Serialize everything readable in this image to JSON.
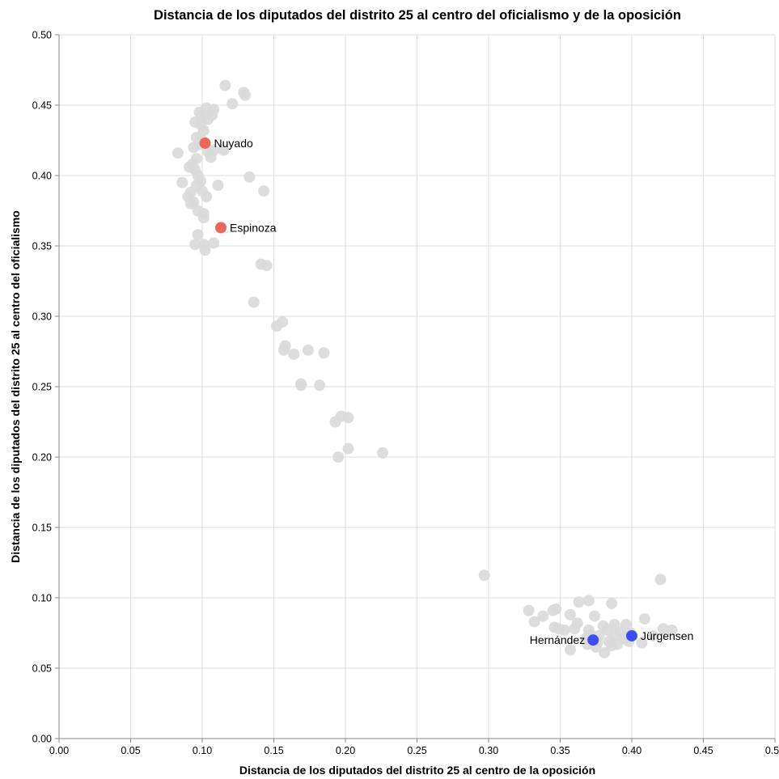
{
  "chart_data": {
    "type": "scatter",
    "title": "Distancia de los diputados del distrito 25 al centro del oficialismo y de la oposición",
    "xlabel": "Distancia de los diputados del distrito 25 al centro de la oposición",
    "ylabel": "Distancia de los diputados del distrito 25 al centro del oficialismo",
    "xlim": [
      0,
      0.5
    ],
    "ylim": [
      0,
      0.5
    ],
    "x_ticks": [
      "0.00",
      "0.05",
      "0.10",
      "0.15",
      "0.20",
      "0.25",
      "0.30",
      "0.35",
      "0.40",
      "0.45",
      "0.50"
    ],
    "y_ticks": [
      "0.00",
      "0.05",
      "0.10",
      "0.15",
      "0.20",
      "0.25",
      "0.30",
      "0.35",
      "0.40",
      "0.45",
      "0.50"
    ],
    "grid": true,
    "colors": {
      "background_points": "#d9d9d9",
      "oficialismo": "#e8685a",
      "oposicion": "#3d4ff0"
    },
    "background_points": [
      [
        0.116,
        0.464
      ],
      [
        0.129,
        0.459
      ],
      [
        0.13,
        0.457
      ],
      [
        0.121,
        0.451
      ],
      [
        0.103,
        0.448
      ],
      [
        0.108,
        0.447
      ],
      [
        0.098,
        0.445
      ],
      [
        0.1,
        0.442
      ],
      [
        0.104,
        0.44
      ],
      [
        0.107,
        0.443
      ],
      [
        0.095,
        0.438
      ],
      [
        0.099,
        0.436
      ],
      [
        0.101,
        0.432
      ],
      [
        0.096,
        0.427
      ],
      [
        0.1,
        0.425
      ],
      [
        0.098,
        0.422
      ],
      [
        0.094,
        0.42
      ],
      [
        0.104,
        0.417
      ],
      [
        0.108,
        0.418
      ],
      [
        0.115,
        0.418
      ],
      [
        0.083,
        0.416
      ],
      [
        0.106,
        0.413
      ],
      [
        0.096,
        0.412
      ],
      [
        0.093,
        0.408
      ],
      [
        0.091,
        0.406
      ],
      [
        0.095,
        0.404
      ],
      [
        0.097,
        0.4
      ],
      [
        0.099,
        0.396
      ],
      [
        0.133,
        0.399
      ],
      [
        0.086,
        0.395
      ],
      [
        0.096,
        0.393
      ],
      [
        0.111,
        0.393
      ],
      [
        0.143,
        0.389
      ],
      [
        0.092,
        0.388
      ],
      [
        0.1,
        0.389
      ],
      [
        0.09,
        0.385
      ],
      [
        0.103,
        0.385
      ],
      [
        0.094,
        0.381
      ],
      [
        0.092,
        0.38
      ],
      [
        0.097,
        0.375
      ],
      [
        0.101,
        0.373
      ],
      [
        0.101,
        0.37
      ],
      [
        0.097,
        0.358
      ],
      [
        0.095,
        0.351
      ],
      [
        0.101,
        0.351
      ],
      [
        0.108,
        0.352
      ],
      [
        0.102,
        0.347
      ],
      [
        0.141,
        0.337
      ],
      [
        0.145,
        0.336
      ],
      [
        0.136,
        0.31
      ],
      [
        0.156,
        0.296
      ],
      [
        0.152,
        0.293
      ],
      [
        0.158,
        0.279
      ],
      [
        0.157,
        0.276
      ],
      [
        0.174,
        0.276
      ],
      [
        0.164,
        0.273
      ],
      [
        0.185,
        0.274
      ],
      [
        0.169,
        0.252
      ],
      [
        0.169,
        0.251
      ],
      [
        0.182,
        0.251
      ],
      [
        0.197,
        0.229
      ],
      [
        0.202,
        0.228
      ],
      [
        0.193,
        0.225
      ],
      [
        0.202,
        0.206
      ],
      [
        0.226,
        0.203
      ],
      [
        0.195,
        0.2
      ],
      [
        0.297,
        0.116
      ],
      [
        0.42,
        0.113
      ],
      [
        0.37,
        0.098
      ],
      [
        0.363,
        0.097
      ],
      [
        0.386,
        0.096
      ],
      [
        0.347,
        0.092
      ],
      [
        0.345,
        0.091
      ],
      [
        0.328,
        0.091
      ],
      [
        0.338,
        0.087
      ],
      [
        0.357,
        0.088
      ],
      [
        0.374,
        0.087
      ],
      [
        0.409,
        0.085
      ],
      [
        0.332,
        0.083
      ],
      [
        0.362,
        0.082
      ],
      [
        0.388,
        0.081
      ],
      [
        0.396,
        0.081
      ],
      [
        0.38,
        0.08
      ],
      [
        0.346,
        0.079
      ],
      [
        0.349,
        0.078
      ],
      [
        0.36,
        0.078
      ],
      [
        0.37,
        0.077
      ],
      [
        0.383,
        0.077
      ],
      [
        0.392,
        0.076
      ],
      [
        0.399,
        0.075
      ],
      [
        0.422,
        0.078
      ],
      [
        0.428,
        0.077
      ],
      [
        0.353,
        0.077
      ],
      [
        0.371,
        0.074
      ],
      [
        0.377,
        0.073
      ],
      [
        0.388,
        0.073
      ],
      [
        0.395,
        0.071
      ],
      [
        0.415,
        0.073
      ],
      [
        0.368,
        0.071
      ],
      [
        0.384,
        0.069
      ],
      [
        0.376,
        0.068
      ],
      [
        0.39,
        0.067
      ],
      [
        0.398,
        0.069
      ],
      [
        0.407,
        0.068
      ],
      [
        0.369,
        0.067
      ],
      [
        0.386,
        0.066
      ],
      [
        0.375,
        0.065
      ],
      [
        0.357,
        0.063
      ],
      [
        0.381,
        0.061
      ]
    ],
    "highlighted_points": [
      {
        "name": "Nuyado",
        "x": 0.102,
        "y": 0.423,
        "group": "oficialismo",
        "label_side": "right"
      },
      {
        "name": "Espinoza",
        "x": 0.113,
        "y": 0.363,
        "group": "oficialismo",
        "label_side": "right"
      },
      {
        "name": "Hernández",
        "x": 0.373,
        "y": 0.07,
        "group": "oposicion",
        "label_side": "left"
      },
      {
        "name": "Jürgensen",
        "x": 0.4,
        "y": 0.073,
        "group": "oposicion",
        "label_side": "right"
      }
    ]
  }
}
